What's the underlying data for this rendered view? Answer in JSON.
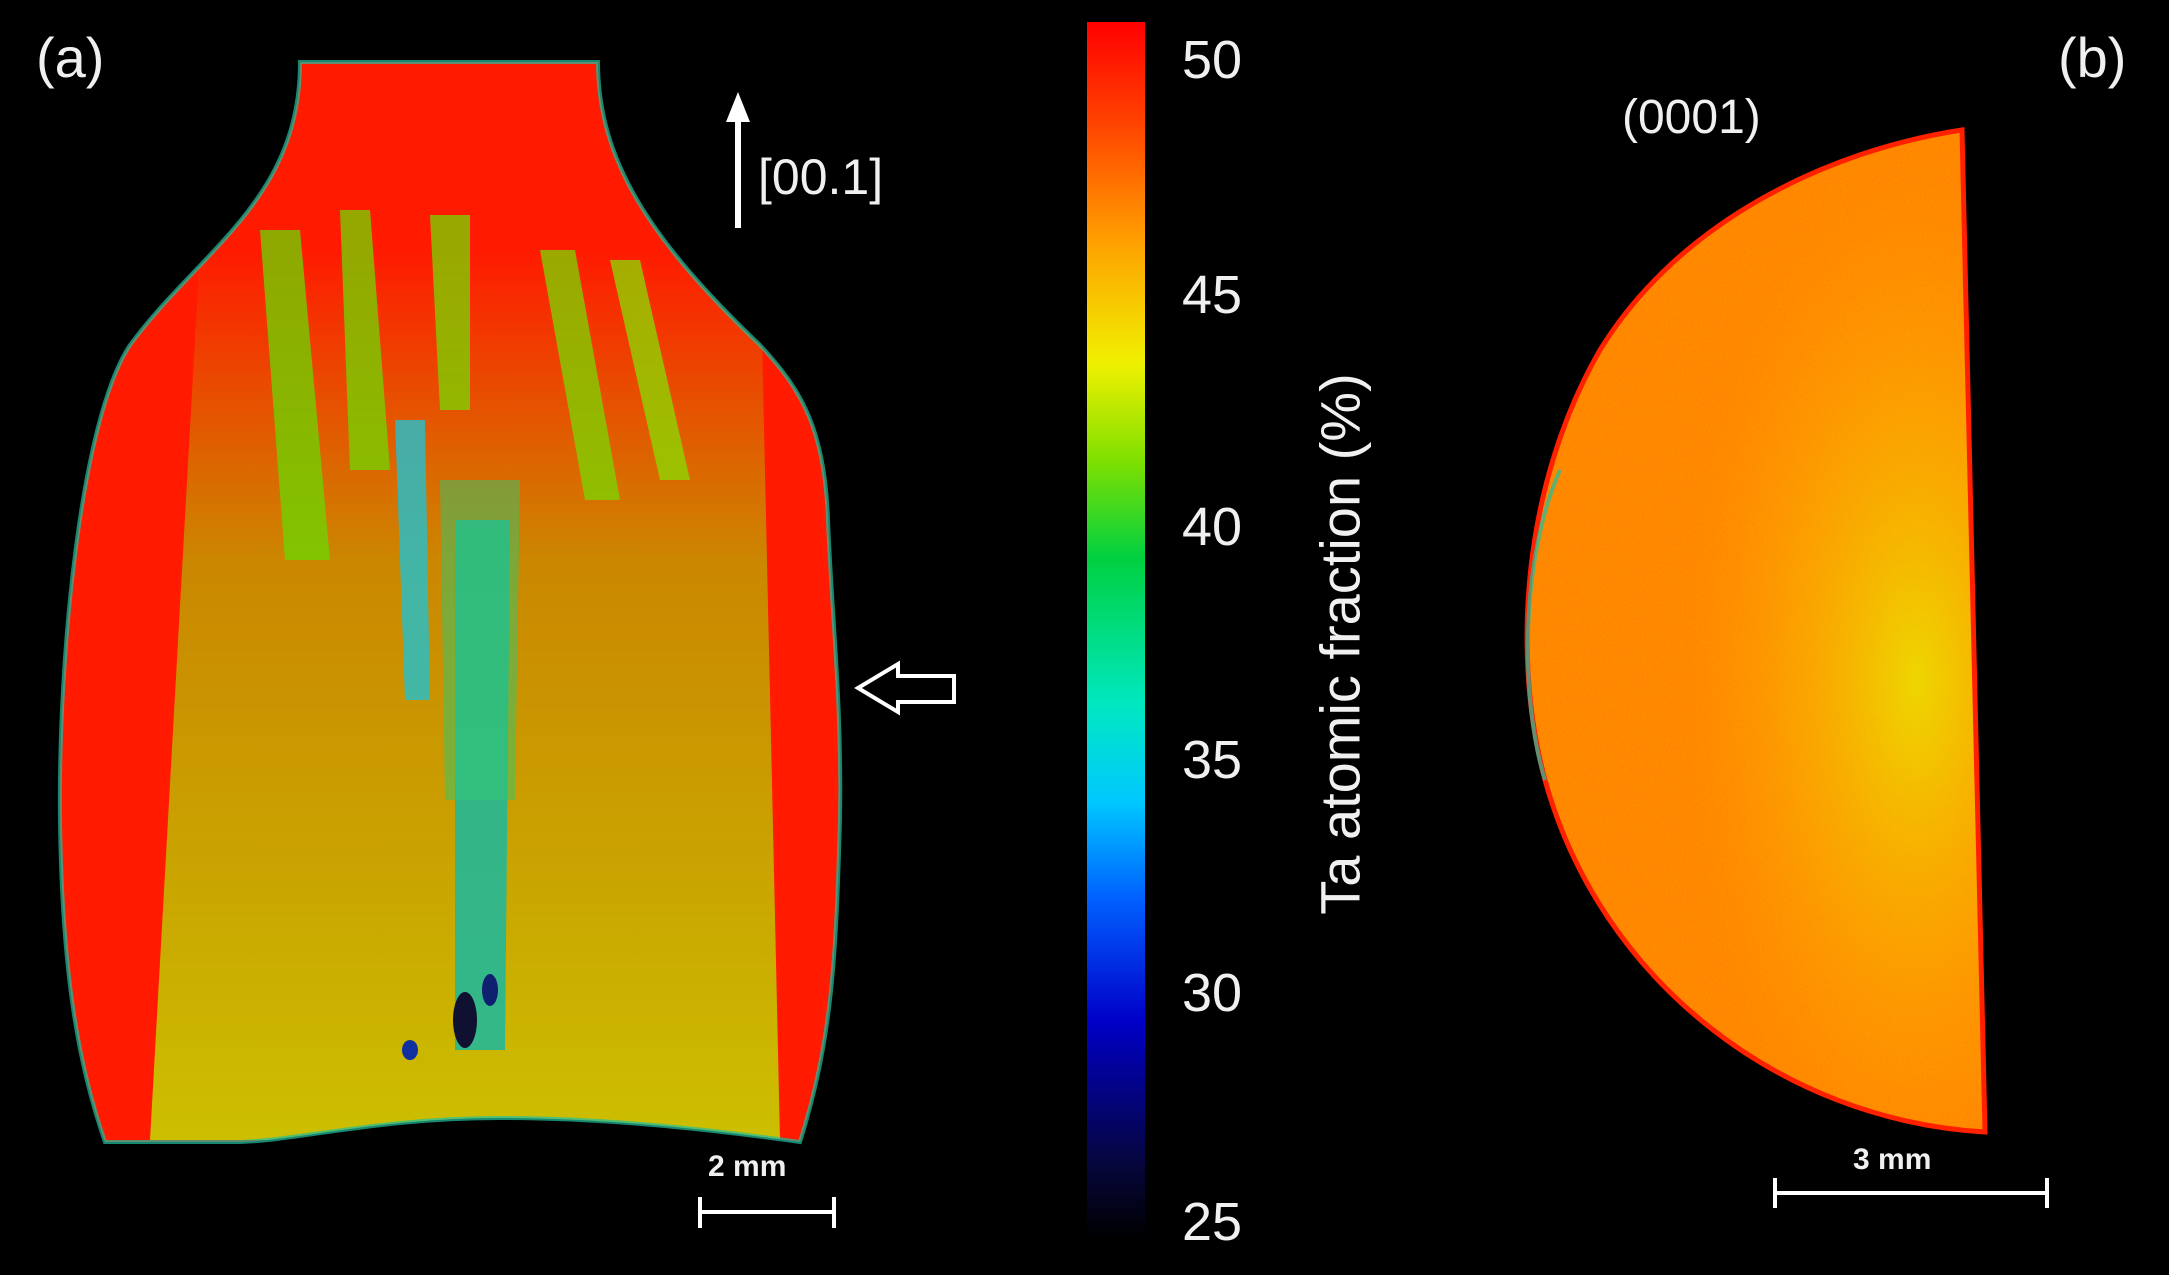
{
  "panels": {
    "a_label": "(a)",
    "b_label": "(b)"
  },
  "annotations": {
    "orientation": "[00.1]",
    "plane": "(0001)",
    "scale_a": "2 mm",
    "scale_b": "3 mm"
  },
  "colorbar": {
    "title": "Ta atomic fraction (%)",
    "ticks": [
      "50",
      "45",
      "40",
      "35",
      "30",
      "25"
    ],
    "range": [
      25,
      50
    ],
    "colors": {
      "low": "#000000",
      "blue": "#0000c8",
      "cyan": "#00c8ff",
      "green": "#00d040",
      "yellow": "#f0f000",
      "high": "#ff0000"
    }
  },
  "icons": {
    "up_arrow": "up-arrow-icon",
    "left_arrow": "left-arrow-icon"
  }
}
